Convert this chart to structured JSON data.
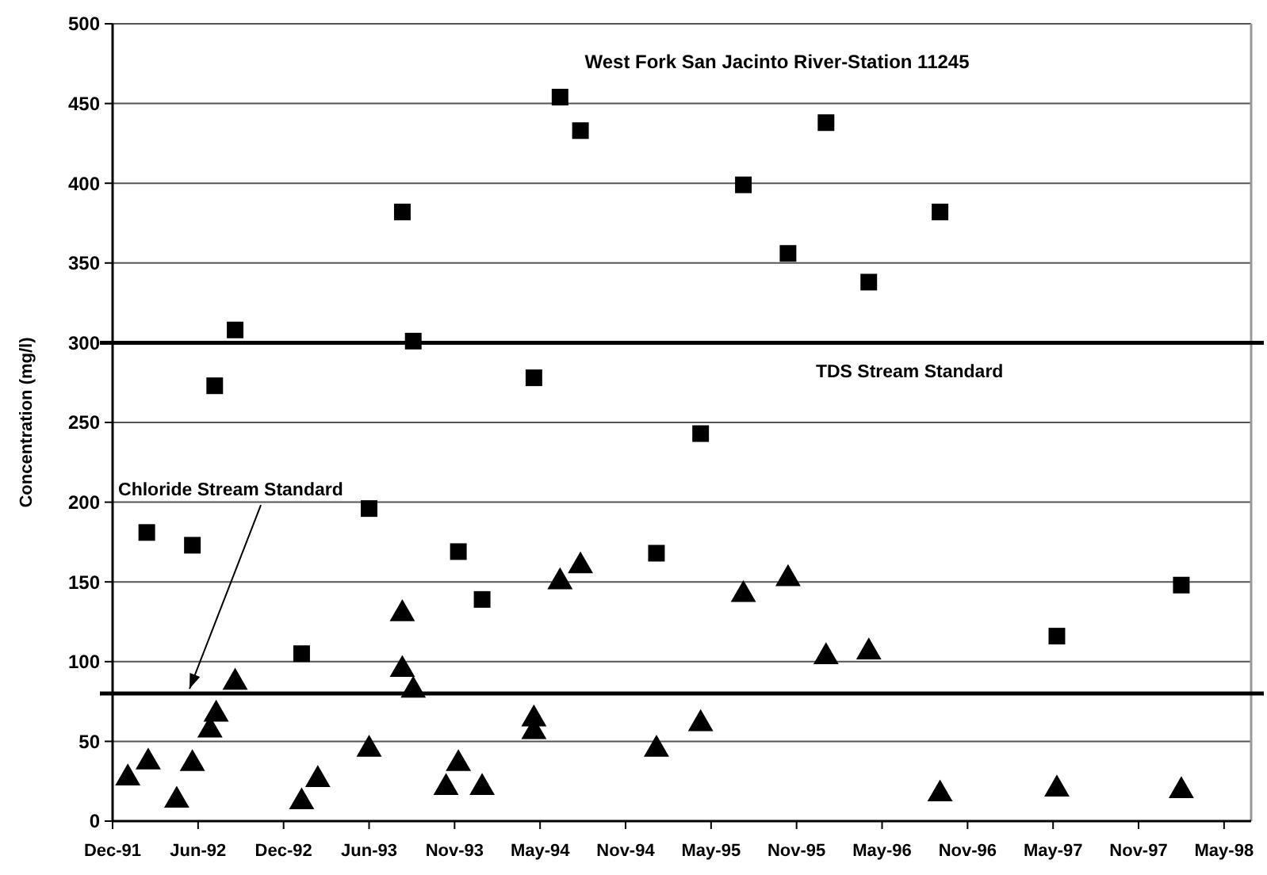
{
  "chart_data": {
    "type": "scatter",
    "title": "West Fork San Jacinto River-Station 11245",
    "ylabel": "Concentration (mg/l)",
    "xlim": [
      "1991-12-10",
      "1998-07-03"
    ],
    "xticks": [
      {
        "value": "1991-12-10",
        "label": "Dec-91"
      },
      {
        "value": "1992-06-07",
        "label": "Jun-92"
      },
      {
        "value": "1992-12-04",
        "label": "Dec-92"
      },
      {
        "value": "1993-06-02",
        "label": "Jun-93"
      },
      {
        "value": "1993-11-29",
        "label": "Nov-93"
      },
      {
        "value": "1994-05-28",
        "label": "May-94"
      },
      {
        "value": "1994-11-24",
        "label": "Nov-94"
      },
      {
        "value": "1995-05-23",
        "label": "May-95"
      },
      {
        "value": "1995-11-19",
        "label": "Nov-95"
      },
      {
        "value": "1996-05-17",
        "label": "May-96"
      },
      {
        "value": "1996-11-13",
        "label": "Nov-96"
      },
      {
        "value": "1997-05-12",
        "label": "May-97"
      },
      {
        "value": "1997-11-08",
        "label": "Nov-97"
      },
      {
        "value": "1998-05-07",
        "label": "May-98"
      }
    ],
    "ylim": [
      0,
      500
    ],
    "yticks": [
      0,
      50,
      100,
      150,
      200,
      250,
      300,
      350,
      400,
      450,
      500
    ],
    "grid": "y",
    "annotations": [
      {
        "text": "Chloride Stream Standard",
        "x": "1992-05-20",
        "y": 80
      }
    ],
    "ref_lines": [
      {
        "axis": "y",
        "value": 300,
        "label": "TDS Stream Standard",
        "color": "#000000"
      },
      {
        "axis": "y",
        "value": 80,
        "color": "#000000"
      }
    ],
    "series": [
      {
        "color": "#000000",
        "marker": "square",
        "x": [
          "1992-02-20",
          "1992-05-26",
          "1992-07-12",
          "1992-08-24",
          "1993-01-11",
          "1993-06-02",
          "1993-08-11",
          "1993-09-03",
          "1993-12-07",
          "1994-01-26",
          "1994-05-15",
          "1994-07-09",
          "1994-08-21",
          "1995-01-28",
          "1995-05-01",
          "1995-07-30",
          "1995-11-01",
          "1996-01-20",
          "1996-04-19",
          "1996-09-16",
          "1997-05-20",
          "1998-02-06"
        ],
        "values": [
          181,
          173,
          273,
          308,
          105,
          196,
          382,
          301,
          169,
          139,
          278,
          454,
          433,
          168,
          243,
          399,
          356,
          438,
          338,
          382,
          116,
          148
        ]
      },
      {
        "color": "#000000",
        "marker": "triangle",
        "x": [
          "1992-01-11",
          "1992-02-23",
          "1992-04-23",
          "1992-05-26",
          "1992-07-02",
          "1992-07-15",
          "1992-08-24",
          "1993-01-11",
          "1993-02-14",
          "1993-06-02",
          "1993-08-11",
          "1993-08-11",
          "1993-09-03",
          "1993-11-11",
          "1993-12-07",
          "1994-01-26",
          "1994-05-15",
          "1994-05-15",
          "1994-07-09",
          "1994-08-21",
          "1995-01-28",
          "1995-05-01",
          "1995-07-30",
          "1995-11-01",
          "1996-01-20",
          "1996-04-19",
          "1996-09-16",
          "1997-05-20",
          "1998-02-06"
        ],
        "values": [
          27,
          37,
          13,
          36,
          57,
          67,
          87,
          12,
          26,
          45,
          130,
          95,
          82,
          21,
          36,
          21,
          56,
          64,
          150,
          160,
          45,
          61,
          142,
          152,
          103,
          106,
          17,
          20,
          19
        ]
      }
    ]
  }
}
